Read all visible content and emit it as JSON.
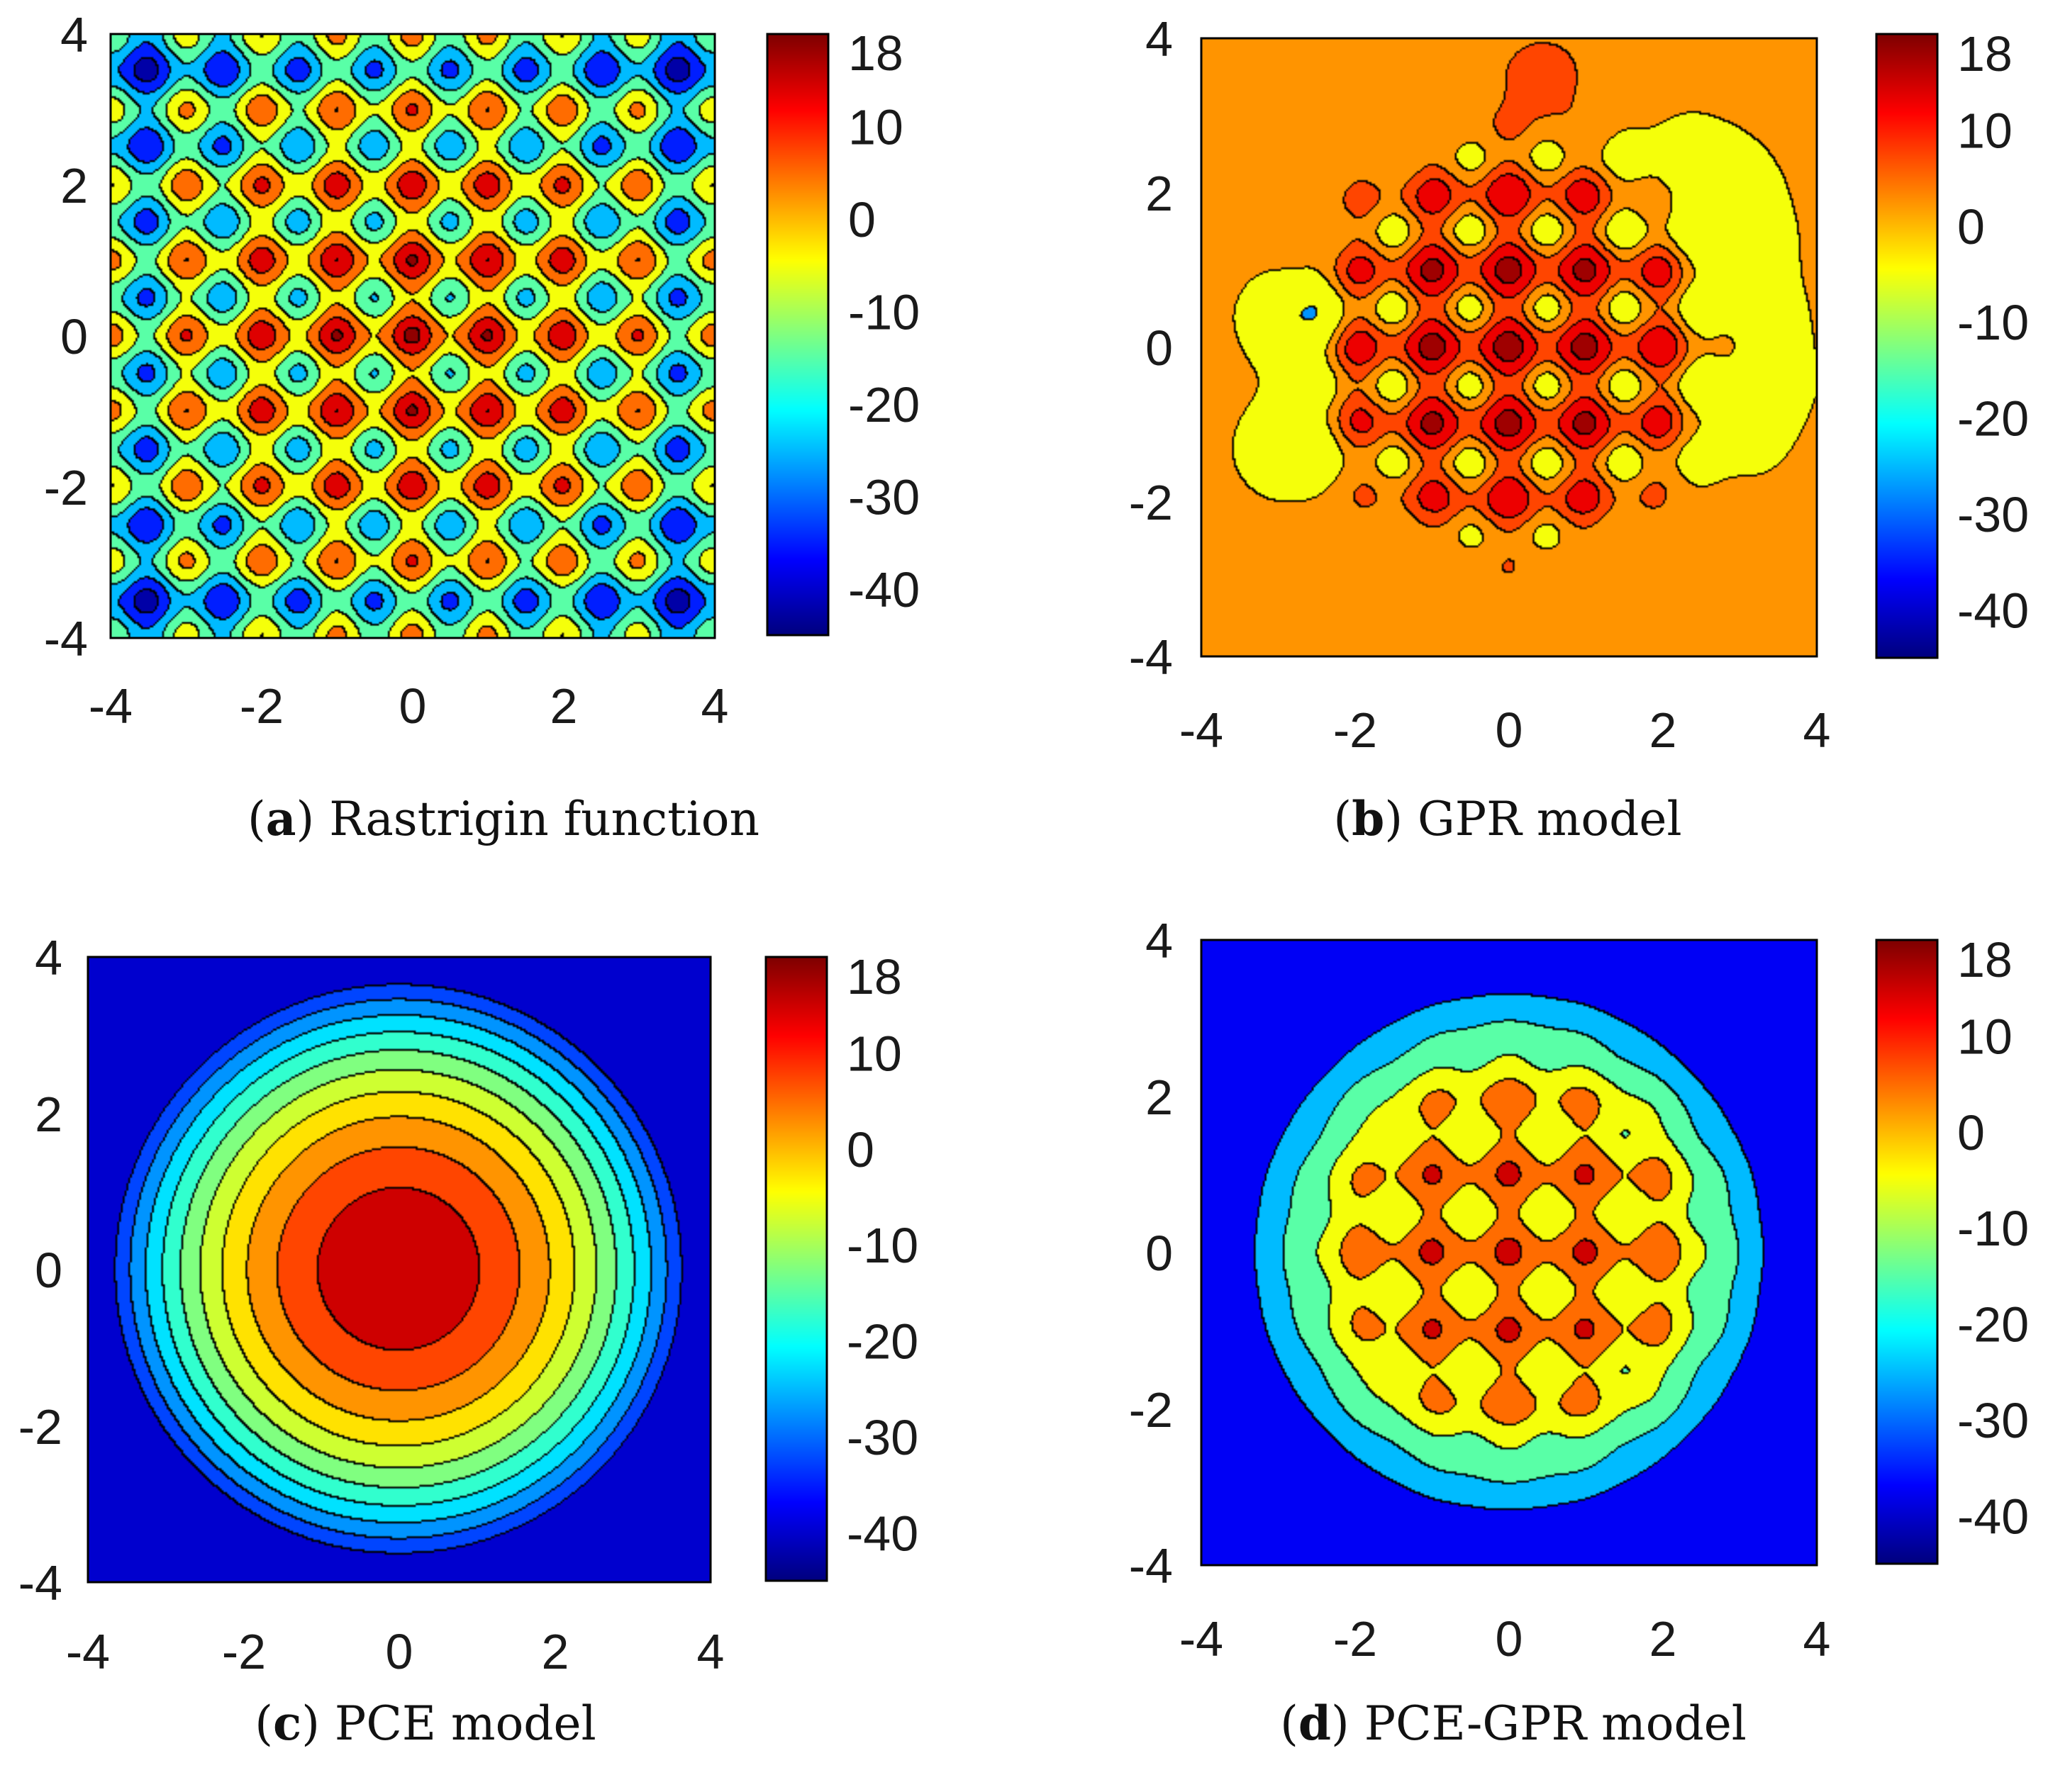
{
  "colors": {
    "colormap": [
      "#000080",
      "#0000ff",
      "#0080ff",
      "#00ffff",
      "#80ff80",
      "#ffff00",
      "#ff8000",
      "#ff0000",
      "#800000"
    ],
    "contour_line": "#000000"
  },
  "chart_data": [
    {
      "id": "a",
      "type": "contour",
      "caption_tag": "a",
      "caption_text": "Rastrigin function",
      "xlim": [
        -4,
        4
      ],
      "ylim": [
        -4,
        4
      ],
      "xticks": [
        "-4",
        "-2",
        "0",
        "2",
        "4"
      ],
      "yticks": [
        "-4",
        "-2",
        "0",
        "2",
        "4"
      ],
      "colorbar": {
        "limits": [
          -45,
          20
        ],
        "ticks": [
          "18",
          "10",
          "0",
          "-10",
          "-20",
          "-30",
          "-40"
        ],
        "tick_values": [
          18,
          10,
          0,
          -10,
          -20,
          -30,
          -40
        ]
      },
      "model": {
        "kind": "rastrigin",
        "levels": [
          -40,
          -30,
          -20,
          -10,
          0,
          10,
          18
        ]
      }
    },
    {
      "id": "b",
      "type": "contour",
      "caption_tag": "b",
      "caption_text": "GPR model",
      "xlim": [
        -4,
        4
      ],
      "ylim": [
        -4,
        4
      ],
      "xticks": [
        "-4",
        "-2",
        "0",
        "2",
        "4"
      ],
      "yticks": [
        "-4",
        "-2",
        "0",
        "2",
        "4"
      ],
      "colorbar": {
        "limits": [
          -45,
          20
        ],
        "ticks": [
          "18",
          "10",
          "0",
          "-10",
          "-20",
          "-30",
          "-40"
        ],
        "tick_values": [
          18,
          10,
          0,
          -10,
          -20,
          -30,
          -40
        ]
      },
      "model": {
        "kind": "gpr",
        "background": 3,
        "levels": [
          -10,
          0,
          5,
          10,
          16
        ]
      }
    },
    {
      "id": "c",
      "type": "contour",
      "caption_tag": "c",
      "caption_text": "PCE model",
      "xlim": [
        -4,
        4
      ],
      "ylim": [
        -4,
        4
      ],
      "xticks": [
        "-4",
        "-2",
        "0",
        "2",
        "4"
      ],
      "yticks": [
        "-4",
        "-2",
        "0",
        "2",
        "4"
      ],
      "colorbar": {
        "limits": [
          -45,
          20
        ],
        "ticks": [
          "18",
          "10",
          "0",
          "-10",
          "-20",
          "-30",
          "-40"
        ],
        "tick_values": [
          18,
          10,
          0,
          -10,
          -20,
          -30,
          -40
        ]
      },
      "model": {
        "kind": "pce",
        "levels": [
          -35,
          -30,
          -25,
          -20,
          -15,
          -10,
          -5,
          0,
          5,
          10
        ]
      }
    },
    {
      "id": "d",
      "type": "contour",
      "caption_tag": "d",
      "caption_text": "PCE-GPR model",
      "xlim": [
        -4,
        4
      ],
      "ylim": [
        -4,
        4
      ],
      "xticks": [
        "-4",
        "-2",
        "0",
        "2",
        "4"
      ],
      "yticks": [
        "-4",
        "-2",
        "0",
        "2",
        "4"
      ],
      "colorbar": {
        "limits": [
          -45,
          20
        ],
        "ticks": [
          "18",
          "10",
          "0",
          "-10",
          "-20",
          "-30",
          "-40"
        ],
        "tick_values": [
          18,
          10,
          0,
          -10,
          -20,
          -30,
          -40
        ]
      },
      "model": {
        "kind": "pcegpr",
        "levels": [
          -30,
          -20,
          -10,
          0,
          10
        ]
      }
    }
  ]
}
